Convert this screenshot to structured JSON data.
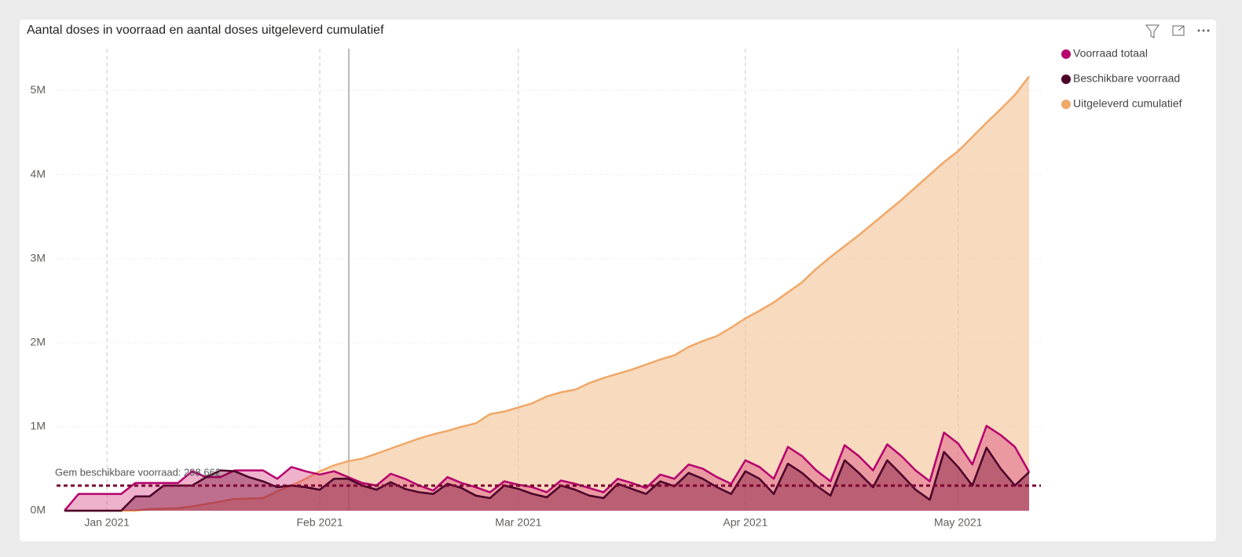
{
  "chart_data": {
    "type": "area",
    "title": "Aantal doses in voorraad en aantal doses uitgeleverd cumulatief",
    "categories": [
      null,
      null,
      null,
      "Jan 2021",
      null,
      null,
      null,
      null,
      null,
      null,
      null,
      null,
      null,
      null,
      null,
      null,
      null,
      null,
      "Feb 2021",
      null,
      null,
      null,
      null,
      null,
      null,
      null,
      null,
      null,
      null,
      null,
      null,
      null,
      "Mar 2021",
      null,
      null,
      null,
      null,
      null,
      null,
      null,
      null,
      null,
      null,
      null,
      null,
      null,
      null,
      null,
      "Apr 2021",
      null,
      null,
      null,
      null,
      null,
      null,
      null,
      null,
      null,
      null,
      null,
      null,
      null,
      null,
      "May 2021",
      null,
      null,
      null,
      null,
      null
    ],
    "series": [
      {
        "name": "Uitgeleverd cumulatief",
        "color": "#f0a868",
        "fill": "rgba(244,196,150,0.62)",
        "values": [
          0,
          0,
          0,
          0,
          0,
          0,
          20000,
          25000,
          30000,
          50000,
          80000,
          110000,
          140000,
          145000,
          150000,
          230000,
          300000,
          380000,
          470000,
          540000,
          590000,
          620000,
          680000,
          740000,
          800000,
          860000,
          910000,
          950000,
          1000000,
          1040000,
          1150000,
          1180000,
          1230000,
          1280000,
          1360000,
          1410000,
          1440000,
          1520000,
          1580000,
          1630000,
          1680000,
          1740000,
          1800000,
          1850000,
          1950000,
          2020000,
          2080000,
          2180000,
          2290000,
          2380000,
          2480000,
          2600000,
          2720000,
          2880000,
          3020000,
          3150000,
          3280000,
          3420000,
          3560000,
          3700000,
          3850000,
          4000000,
          4150000,
          4280000,
          4450000,
          4620000,
          4780000,
          4950000,
          5170000
        ]
      },
      {
        "name": "Voorraad totaal",
        "color": "#b5006e",
        "fill": "rgba(205,20,100,0.33)",
        "values": [
          0,
          200000,
          200000,
          200000,
          200000,
          330000,
          330000,
          330000,
          330000,
          470000,
          400000,
          400000,
          480000,
          480000,
          480000,
          380000,
          520000,
          470000,
          430000,
          470000,
          400000,
          330000,
          300000,
          440000,
          380000,
          300000,
          240000,
          400000,
          330000,
          280000,
          220000,
          350000,
          310000,
          280000,
          220000,
          360000,
          320000,
          270000,
          220000,
          380000,
          330000,
          270000,
          430000,
          380000,
          550000,
          500000,
          400000,
          320000,
          600000,
          520000,
          380000,
          760000,
          650000,
          480000,
          350000,
          780000,
          650000,
          480000,
          790000,
          650000,
          480000,
          350000,
          930000,
          800000,
          550000,
          1010000,
          900000,
          760000,
          460000
        ]
      },
      {
        "name": "Beschikbare voorraad",
        "color": "#4a0028",
        "fill": "rgba(110,0,45,0.38)",
        "values": [
          0,
          0,
          0,
          0,
          0,
          170000,
          170000,
          300000,
          300000,
          300000,
          400000,
          480000,
          470000,
          400000,
          350000,
          280000,
          300000,
          280000,
          250000,
          380000,
          380000,
          300000,
          250000,
          340000,
          260000,
          220000,
          200000,
          320000,
          270000,
          180000,
          150000,
          300000,
          260000,
          200000,
          160000,
          300000,
          250000,
          180000,
          150000,
          320000,
          260000,
          200000,
          350000,
          290000,
          450000,
          380000,
          280000,
          200000,
          470000,
          380000,
          200000,
          560000,
          450000,
          300000,
          180000,
          600000,
          450000,
          280000,
          600000,
          430000,
          250000,
          130000,
          700000,
          520000,
          300000,
          750000,
          500000,
          300000,
          460000
        ]
      }
    ],
    "reference_line": {
      "label": "Gem beschikbare voorraad: 298,662",
      "value": 298662,
      "color": "#7a0030"
    },
    "ylim": [
      0,
      5500000
    ],
    "yticks": [
      {
        "value": 0,
        "label": "0M"
      },
      {
        "value": 1000000,
        "label": "1M"
      },
      {
        "value": 2000000,
        "label": "2M"
      },
      {
        "value": 3000000,
        "label": "3M"
      },
      {
        "value": 4000000,
        "label": "4M"
      },
      {
        "value": 5000000,
        "label": "5M"
      }
    ],
    "grid": true,
    "legend": "right"
  }
}
